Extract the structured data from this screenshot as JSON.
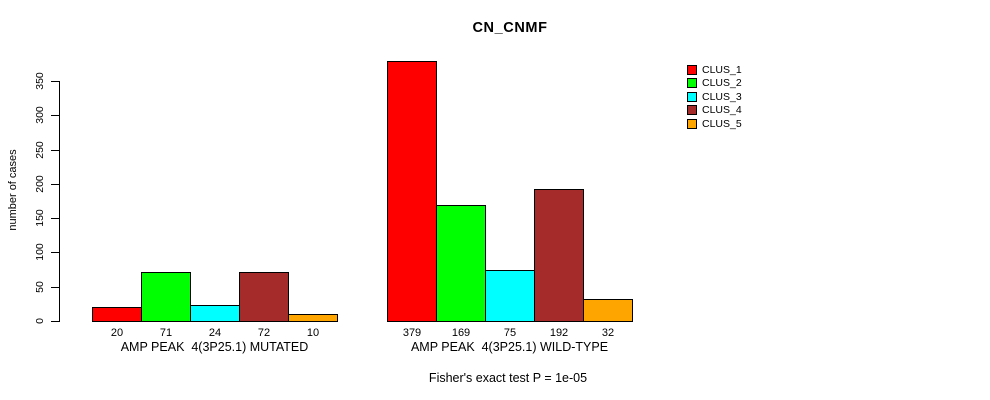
{
  "chart_data": {
    "type": "bar",
    "title": "CN_CNMF",
    "ylabel": "number of cases",
    "xlabel": "",
    "ylim": [
      0,
      383
    ],
    "yticks": [
      0,
      50,
      100,
      150,
      200,
      250,
      300,
      350
    ],
    "grid": false,
    "legend_position": "right",
    "series": [
      {
        "name": "CLUS_1",
        "color": "#FF0000"
      },
      {
        "name": "CLUS_2",
        "color": "#00FF00"
      },
      {
        "name": "CLUS_3",
        "color": "#00FFFF"
      },
      {
        "name": "CLUS_4",
        "color": "#A52A2A"
      },
      {
        "name": "CLUS_5",
        "color": "#FFA500"
      }
    ],
    "groups": [
      {
        "label": "AMP PEAK  4(3P25.1) MUTATED",
        "values": [
          20,
          71,
          24,
          72,
          10
        ]
      },
      {
        "label": "AMP PEAK  4(3P25.1) WILD-TYPE",
        "values": [
          379,
          169,
          75,
          192,
          32
        ]
      }
    ],
    "footnote": "Fisher's exact test P = 1e-05"
  }
}
